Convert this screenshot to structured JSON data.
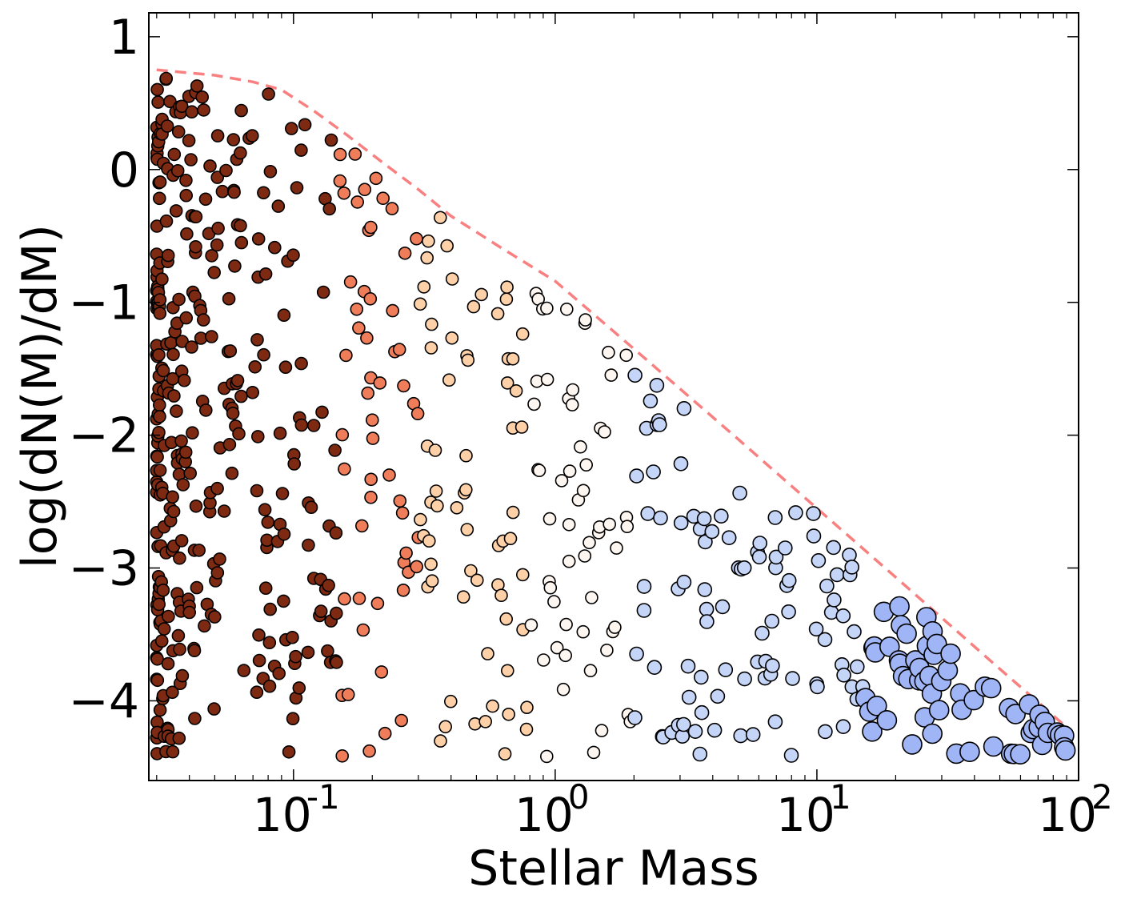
{
  "chart_data": {
    "type": "scatter",
    "title": "",
    "xlabel": "Stellar Mass",
    "ylabel": "log(dN(M)/dM)",
    "xscale": "log",
    "xlim": [
      0.028,
      100
    ],
    "ylim": [
      -4.6,
      1.18
    ],
    "x_ticks": [
      {
        "value": 0.1,
        "base": "10",
        "exp": "-1"
      },
      {
        "value": 1,
        "base": "10",
        "exp": "0"
      },
      {
        "value": 10,
        "base": "10",
        "exp": "1"
      },
      {
        "value": 100,
        "base": "10",
        "exp": "2"
      }
    ],
    "y_ticks": [
      {
        "value": 1,
        "label": "1"
      },
      {
        "value": 0,
        "label": "0"
      },
      {
        "value": -1,
        "label": "−1"
      },
      {
        "value": -2,
        "label": "−2"
      },
      {
        "value": -3,
        "label": "−3"
      },
      {
        "value": -4,
        "label": "−4"
      }
    ],
    "grid": false,
    "imf_curve": {
      "style": "dashed",
      "color": "#f88080",
      "x": [
        0.03,
        0.05,
        0.07,
        0.09,
        0.12,
        0.16,
        0.22,
        0.3,
        0.4,
        0.5,
        0.6,
        1.0,
        2.0,
        5.0,
        10,
        20,
        50,
        70,
        90
      ],
      "y": [
        0.75,
        0.71,
        0.66,
        0.6,
        0.44,
        0.26,
        0.05,
        -0.15,
        -0.35,
        -0.47,
        -0.57,
        -0.84,
        -1.35,
        -2.03,
        -2.55,
        -3.07,
        -3.76,
        -4.01,
        -4.2
      ]
    },
    "mass_bins": [
      {
        "range": "< 0.15",
        "color": "#7e2a12"
      },
      {
        "range": "0.15 – 0.3",
        "color": "#f07d5a"
      },
      {
        "range": "0.3 – 0.8",
        "color": "#fdd0a8"
      },
      {
        "range": "0.8 – 2",
        "color": "#fdf5f0"
      },
      {
        "range": "2 – 15",
        "color": "#c5d5f8"
      },
      {
        "range": "> 15",
        "color": "#9fb5f5"
      }
    ],
    "point_count": 676,
    "random_seed": 20240517
  }
}
